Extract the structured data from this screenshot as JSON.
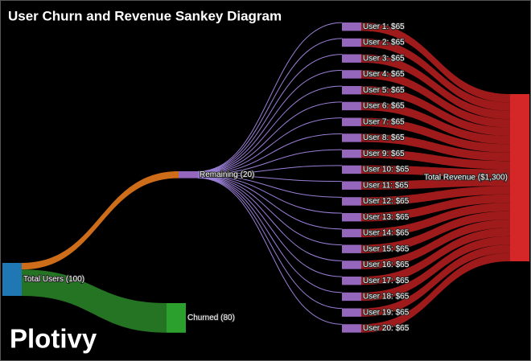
{
  "chart_data": {
    "type": "sankey",
    "title": "User Churn and Revenue Sankey Diagram",
    "watermark": "Plotivy",
    "nodes": [
      {
        "label": "Total Users (100)",
        "value": 100,
        "color": "#1f77b4"
      },
      {
        "label": "Remaining (20)",
        "value": 20,
        "color": "#9467bd"
      },
      {
        "label": "Churned (80)",
        "value": 80,
        "color": "#2ca02c"
      },
      {
        "label": "User 1: $65",
        "value": 65,
        "color": "#9467bd"
      },
      {
        "label": "User 2: $65",
        "value": 65,
        "color": "#9467bd"
      },
      {
        "label": "User 3: $65",
        "value": 65,
        "color": "#9467bd"
      },
      {
        "label": "User 4: $65",
        "value": 65,
        "color": "#9467bd"
      },
      {
        "label": "User 5: $65",
        "value": 65,
        "color": "#9467bd"
      },
      {
        "label": "User 6: $65",
        "value": 65,
        "color": "#9467bd"
      },
      {
        "label": "User 7: $65",
        "value": 65,
        "color": "#9467bd"
      },
      {
        "label": "User 8: $65",
        "value": 65,
        "color": "#9467bd"
      },
      {
        "label": "User 9: $65",
        "value": 65,
        "color": "#9467bd"
      },
      {
        "label": "User 10: $65",
        "value": 65,
        "color": "#9467bd"
      },
      {
        "label": "User 11: $65",
        "value": 65,
        "color": "#9467bd"
      },
      {
        "label": "User 12: $65",
        "value": 65,
        "color": "#9467bd"
      },
      {
        "label": "User 13: $65",
        "value": 65,
        "color": "#9467bd"
      },
      {
        "label": "User 14: $65",
        "value": 65,
        "color": "#9467bd"
      },
      {
        "label": "User 15: $65",
        "value": 65,
        "color": "#9467bd"
      },
      {
        "label": "User 16: $65",
        "value": 65,
        "color": "#9467bd"
      },
      {
        "label": "User 17: $65",
        "value": 65,
        "color": "#9467bd"
      },
      {
        "label": "User 18: $65",
        "value": 65,
        "color": "#9467bd"
      },
      {
        "label": "User 19: $65",
        "value": 65,
        "color": "#9467bd"
      },
      {
        "label": "User 20: $65",
        "value": 65,
        "color": "#9467bd"
      },
      {
        "label": "Total Revenue ($1,300)",
        "value": 1300,
        "color": "#d62728"
      }
    ],
    "links": [
      {
        "source": 0,
        "target": 1,
        "value": 20,
        "color": "#d9731a"
      },
      {
        "source": 0,
        "target": 2,
        "value": 80,
        "color": "#267a26"
      },
      {
        "source": 1,
        "target": 3,
        "value": 1,
        "color": "#9a7fd6"
      },
      {
        "source": 1,
        "target": 4,
        "value": 1,
        "color": "#9a7fd6"
      },
      {
        "source": 1,
        "target": 5,
        "value": 1,
        "color": "#9a7fd6"
      },
      {
        "source": 1,
        "target": 6,
        "value": 1,
        "color": "#9a7fd6"
      },
      {
        "source": 1,
        "target": 7,
        "value": 1,
        "color": "#9a7fd6"
      },
      {
        "source": 1,
        "target": 8,
        "value": 1,
        "color": "#9a7fd6"
      },
      {
        "source": 1,
        "target": 9,
        "value": 1,
        "color": "#9a7fd6"
      },
      {
        "source": 1,
        "target": 10,
        "value": 1,
        "color": "#9a7fd6"
      },
      {
        "source": 1,
        "target": 11,
        "value": 1,
        "color": "#9a7fd6"
      },
      {
        "source": 1,
        "target": 12,
        "value": 1,
        "color": "#9a7fd6"
      },
      {
        "source": 1,
        "target": 13,
        "value": 1,
        "color": "#9a7fd6"
      },
      {
        "source": 1,
        "target": 14,
        "value": 1,
        "color": "#9a7fd6"
      },
      {
        "source": 1,
        "target": 15,
        "value": 1,
        "color": "#9a7fd6"
      },
      {
        "source": 1,
        "target": 16,
        "value": 1,
        "color": "#9a7fd6"
      },
      {
        "source": 1,
        "target": 17,
        "value": 1,
        "color": "#9a7fd6"
      },
      {
        "source": 1,
        "target": 18,
        "value": 1,
        "color": "#9a7fd6"
      },
      {
        "source": 1,
        "target": 19,
        "value": 1,
        "color": "#9a7fd6"
      },
      {
        "source": 1,
        "target": 20,
        "value": 1,
        "color": "#9a7fd6"
      },
      {
        "source": 1,
        "target": 21,
        "value": 1,
        "color": "#9a7fd6"
      },
      {
        "source": 1,
        "target": 22,
        "value": 1,
        "color": "#9a7fd6"
      },
      {
        "source": 3,
        "target": 23,
        "value": 65,
        "color": "#a81c1c"
      },
      {
        "source": 4,
        "target": 23,
        "value": 65,
        "color": "#a81c1c"
      },
      {
        "source": 5,
        "target": 23,
        "value": 65,
        "color": "#a81c1c"
      },
      {
        "source": 6,
        "target": 23,
        "value": 65,
        "color": "#a81c1c"
      },
      {
        "source": 7,
        "target": 23,
        "value": 65,
        "color": "#a81c1c"
      },
      {
        "source": 8,
        "target": 23,
        "value": 65,
        "color": "#a81c1c"
      },
      {
        "source": 9,
        "target": 23,
        "value": 65,
        "color": "#a81c1c"
      },
      {
        "source": 10,
        "target": 23,
        "value": 65,
        "color": "#a81c1c"
      },
      {
        "source": 11,
        "target": 23,
        "value": 65,
        "color": "#a81c1c"
      },
      {
        "source": 12,
        "target": 23,
        "value": 65,
        "color": "#a81c1c"
      },
      {
        "source": 13,
        "target": 23,
        "value": 65,
        "color": "#a81c1c"
      },
      {
        "source": 14,
        "target": 23,
        "value": 65,
        "color": "#a81c1c"
      },
      {
        "source": 15,
        "target": 23,
        "value": 65,
        "color": "#a81c1c"
      },
      {
        "source": 16,
        "target": 23,
        "value": 65,
        "color": "#a81c1c"
      },
      {
        "source": 17,
        "target": 23,
        "value": 65,
        "color": "#a81c1c"
      },
      {
        "source": 18,
        "target": 23,
        "value": 65,
        "color": "#a81c1c"
      },
      {
        "source": 19,
        "target": 23,
        "value": 65,
        "color": "#a81c1c"
      },
      {
        "source": 20,
        "target": 23,
        "value": 65,
        "color": "#a81c1c"
      },
      {
        "source": 21,
        "target": 23,
        "value": 65,
        "color": "#a81c1c"
      },
      {
        "source": 22,
        "target": 23,
        "value": 65,
        "color": "#a81c1c"
      }
    ]
  }
}
